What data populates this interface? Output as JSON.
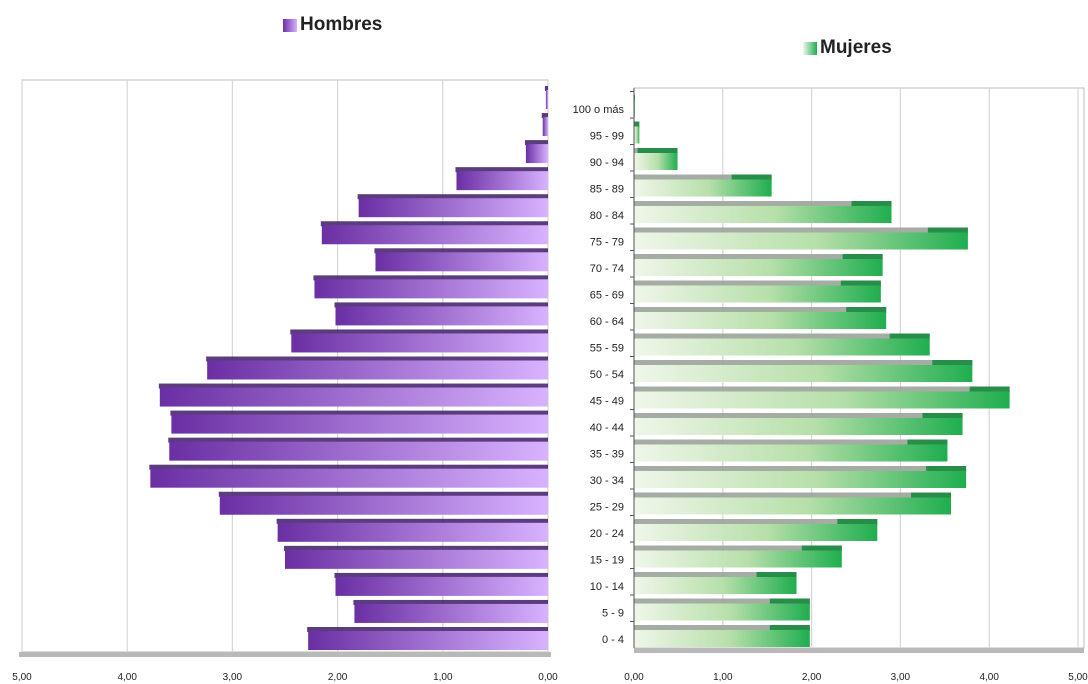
{
  "chart_data": [
    {
      "type": "bar",
      "orientation": "horizontal",
      "direction": "right-to-left",
      "title": "Hombres",
      "series": [
        {
          "name": "Hombres",
          "values": [
            2.28,
            1.84,
            2.02,
            2.5,
            2.57,
            3.12,
            3.78,
            3.6,
            3.58,
            3.69,
            3.24,
            2.44,
            2.02,
            2.22,
            1.64,
            2.15,
            1.8,
            0.87,
            0.21,
            0.05,
            0.02
          ]
        }
      ],
      "categories": [
        "0 - 4",
        "5 - 9",
        "10 - 14",
        "15 - 19",
        "20 - 24",
        "25 - 29",
        "30 - 34",
        "35 - 39",
        "40 - 44",
        "45 - 49",
        "50 - 54",
        "55 - 59",
        "60 - 64",
        "65 - 69",
        "70 - 74",
        "75 - 79",
        "80 - 84",
        "85 - 89",
        "90 - 94",
        "95 - 99",
        "100 o más"
      ],
      "xlim": [
        0,
        5
      ],
      "x_tick_labels": [
        "5,00",
        "4,00",
        "3,00",
        "2,00",
        "1,00",
        "0,00"
      ],
      "grid": "vertical",
      "colors": {
        "dark": "#6a2fa3",
        "light": "#d8b2ff"
      }
    },
    {
      "type": "bar",
      "orientation": "horizontal",
      "title": "Mujeres",
      "series": [
        {
          "name": "Mujeres",
          "values": [
            1.98,
            1.98,
            1.83,
            2.34,
            2.74,
            3.57,
            3.74,
            3.53,
            3.7,
            4.23,
            3.81,
            3.33,
            2.84,
            2.78,
            2.8,
            3.76,
            2.9,
            1.55,
            0.49,
            0.06,
            0.01
          ]
        }
      ],
      "categories": [
        "0 - 4",
        "5 - 9",
        "10 - 14",
        "15 - 19",
        "20 - 24",
        "25 - 29",
        "30 - 34",
        "35 - 39",
        "40 - 44",
        "45 - 49",
        "50 - 54",
        "55 - 59",
        "60 - 64",
        "65 - 69",
        "70 - 74",
        "75 - 79",
        "80 - 84",
        "85 - 89",
        "90 - 94",
        "95 - 99",
        "100 o más"
      ],
      "xlim": [
        0,
        5
      ],
      "x_tick_labels": [
        "0,00",
        "1,00",
        "2,00",
        "3,00",
        "4,00",
        "5,00"
      ],
      "grid": "vertical",
      "colors": {
        "dark": "#1fae4f",
        "light": "#f0f6ea"
      }
    }
  ]
}
